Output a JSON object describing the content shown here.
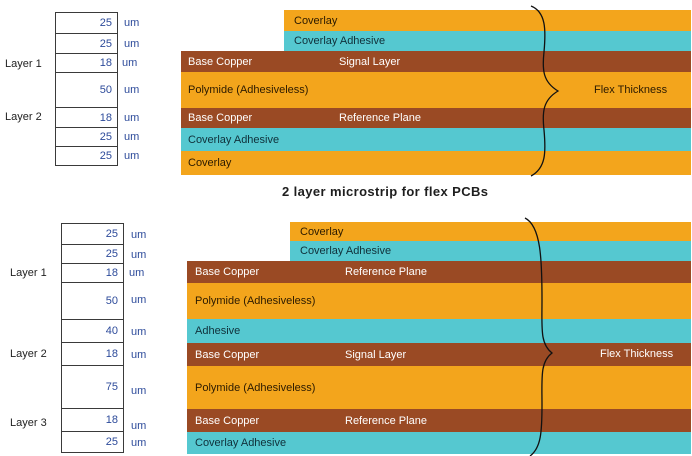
{
  "colors": {
    "coverlay": "#f3a51c",
    "adhesive": "#55c8d0",
    "copper": "#9a4a24",
    "polymide": "#f3a51c",
    "value_text": "#2c4a9a"
  },
  "diagram1": {
    "caption": "2 layer microstrip for flex PCBs",
    "flex_label": "Flex Thickness",
    "unit": "um",
    "thickness": [
      "25",
      "25",
      "18",
      "50",
      "18",
      "25",
      "25"
    ],
    "layer_labels": [
      "Layer 1",
      "Layer 2"
    ],
    "bands": [
      {
        "label": "Coverlay",
        "sub": ""
      },
      {
        "label": "Coverlay Adhesive",
        "sub": ""
      },
      {
        "label": "Base Copper",
        "sub": "Signal Layer"
      },
      {
        "label": "Polymide (Adhesiveless)",
        "sub": ""
      },
      {
        "label": "Base Copper",
        "sub": "Reference Plane"
      },
      {
        "label": "Coverlay Adhesive",
        "sub": ""
      },
      {
        "label": "Coverlay",
        "sub": ""
      }
    ]
  },
  "diagram2": {
    "flex_label": "Flex Thickness",
    "unit": "um",
    "thickness": [
      "25",
      "25",
      "18",
      "50",
      "40",
      "18",
      "75",
      "18",
      "25"
    ],
    "layer_labels": [
      "Layer 1",
      "Layer 2",
      "Layer 3"
    ],
    "bands": [
      {
        "label": "Coverlay",
        "sub": ""
      },
      {
        "label": "Coverlay Adhesive",
        "sub": ""
      },
      {
        "label": "Base Copper",
        "sub": "Reference Plane"
      },
      {
        "label": "Polymide (Adhesiveless)",
        "sub": ""
      },
      {
        "label": "Adhesive",
        "sub": ""
      },
      {
        "label": "Base Copper",
        "sub": "Signal Layer"
      },
      {
        "label": "Polymide (Adhesiveless)",
        "sub": ""
      },
      {
        "label": "Base Copper",
        "sub": "Reference Plane"
      },
      {
        "label": "Coverlay Adhesive",
        "sub": ""
      }
    ]
  }
}
